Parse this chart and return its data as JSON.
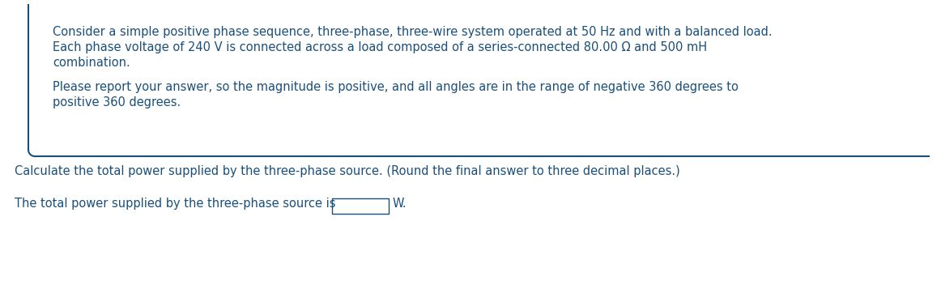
{
  "background_color": "#ffffff",
  "text_color": "#1a4f7a",
  "border_color": "#1a4f7a",
  "font_size": 10.5,
  "paragraph1_line1": "Consider a simple positive phase sequence, three-phase, three-wire system operated at 50 Hz and with a balanced load.",
  "paragraph1_line2": "Each phase voltage of 240 V is connected across a load composed of a series-connected 80.00 Ω and 500 mH",
  "paragraph1_line3": "combination.",
  "paragraph2_line1": "Please report your answer, so the magnitude is positive, and all angles are in the range of negative 360 degrees to",
  "paragraph2_line2": "positive 360 degrees.",
  "question_line": "Calculate the total power supplied by the three-phase source. (Round the final answer to three decimal places.)",
  "answer_line_before": "The total power supplied by the three-phase source is",
  "answer_line_after": "W."
}
